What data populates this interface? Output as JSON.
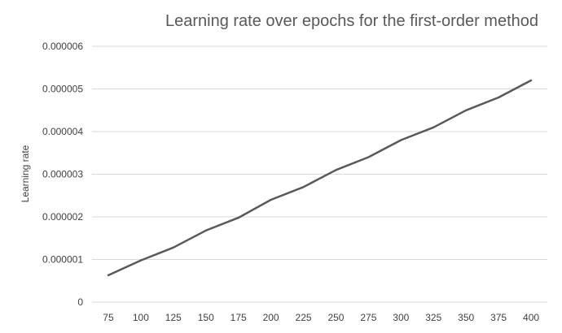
{
  "chart_data": {
    "type": "line",
    "title": "Learning rate over epochs for the first-order method",
    "xlabel": "",
    "ylabel": "Learning rate",
    "categories": [
      "75",
      "100",
      "125",
      "150",
      "175",
      "200",
      "225",
      "250",
      "275",
      "300",
      "325",
      "350",
      "375",
      "400"
    ],
    "yticks": [
      "0",
      "0.000001",
      "0.000002",
      "0.000003",
      "0.000004",
      "0.000005",
      "0.000006"
    ],
    "ylim": [
      0,
      6e-06
    ],
    "grid": true,
    "series": [
      {
        "color": "#595959",
        "values": [
          6.3e-07,
          9.8e-07,
          1.28e-06,
          1.68e-06,
          1.98e-06,
          2.4e-06,
          2.7e-06,
          3.1e-06,
          3.4e-06,
          3.8e-06,
          4.1e-06,
          4.5e-06,
          4.8e-06,
          5.2e-06
        ]
      }
    ]
  }
}
